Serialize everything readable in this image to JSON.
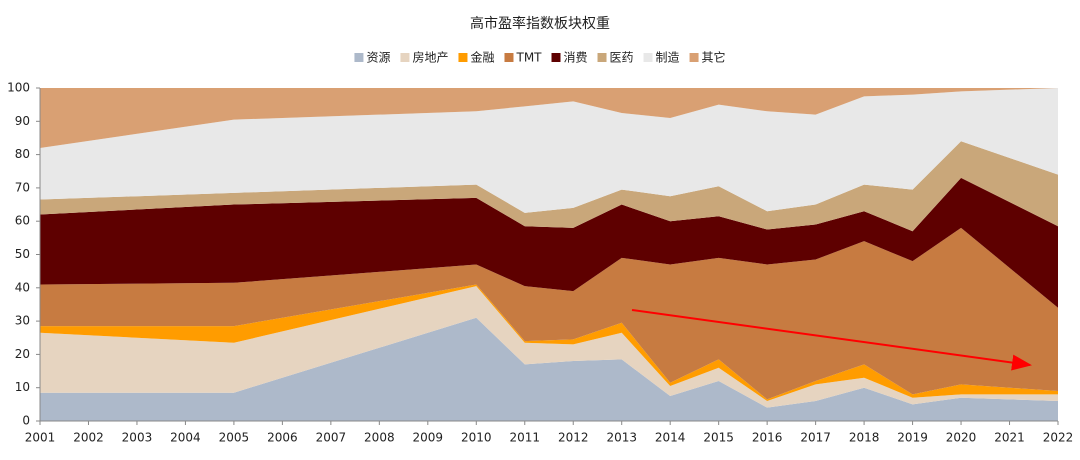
{
  "chart_data": {
    "type": "stacked_area",
    "title": "高市盈率指数板块权重",
    "x": [
      2001,
      2005,
      2010,
      2011,
      2012,
      2013,
      2014,
      2015,
      2016,
      2017,
      2018,
      2019,
      2020,
      2022
    ],
    "series": [
      {
        "name": "资源",
        "color": "#adb9ca",
        "values": [
          8.5,
          8.5,
          31,
          17,
          18,
          18.5,
          7.5,
          12,
          4,
          6,
          10,
          5,
          7,
          6
        ]
      },
      {
        "name": "房地产",
        "color": "#e6d4c0",
        "values": [
          18,
          15,
          9.5,
          6.5,
          5,
          8,
          3,
          4,
          2,
          5,
          3,
          2,
          1,
          2
        ]
      },
      {
        "name": "金融",
        "color": "#ff9c00",
        "values": [
          2,
          5,
          0.5,
          0.5,
          1.5,
          3,
          1,
          2.5,
          0.5,
          1,
          4,
          1,
          3,
          1
        ]
      },
      {
        "name": "TMT",
        "color": "#c77b41",
        "values": [
          12.5,
          13,
          6,
          16.5,
          14.5,
          19.5,
          35.5,
          30.5,
          40.5,
          36.5,
          37,
          40,
          47,
          25
        ]
      },
      {
        "name": "消费",
        "color": "#5e0000",
        "values": [
          21,
          23.5,
          20,
          18,
          19,
          16,
          13,
          12.5,
          10.5,
          10.5,
          9,
          9,
          15,
          24.5
        ]
      },
      {
        "name": "医药",
        "color": "#c9a77a",
        "values": [
          4.5,
          3.5,
          4,
          4,
          6,
          4.5,
          7.5,
          9,
          5.5,
          6,
          8,
          12.5,
          11,
          15.5
        ]
      },
      {
        "name": "制造",
        "color": "#e8e8e8",
        "values": [
          15.5,
          22,
          22,
          32,
          32,
          23,
          23.5,
          24.5,
          30,
          27,
          26.5,
          28.5,
          15,
          26
        ]
      },
      {
        "name": "其它",
        "color": "#d9a073",
        "values": [
          18,
          9.5,
          7,
          5.5,
          4,
          7.5,
          9,
          5,
          7,
          8,
          2.5,
          2,
          1,
          0
        ]
      }
    ],
    "xlim": [
      2001,
      2022
    ],
    "xticks": [
      2001,
      2002,
      2003,
      2004,
      2005,
      2006,
      2007,
      2008,
      2009,
      2010,
      2011,
      2012,
      2013,
      2014,
      2015,
      2016,
      2017,
      2018,
      2019,
      2020,
      2021,
      2022
    ],
    "ylim": [
      0,
      100
    ],
    "yticks": [
      0,
      10,
      20,
      30,
      40,
      50,
      60,
      70,
      80,
      90,
      100
    ]
  }
}
